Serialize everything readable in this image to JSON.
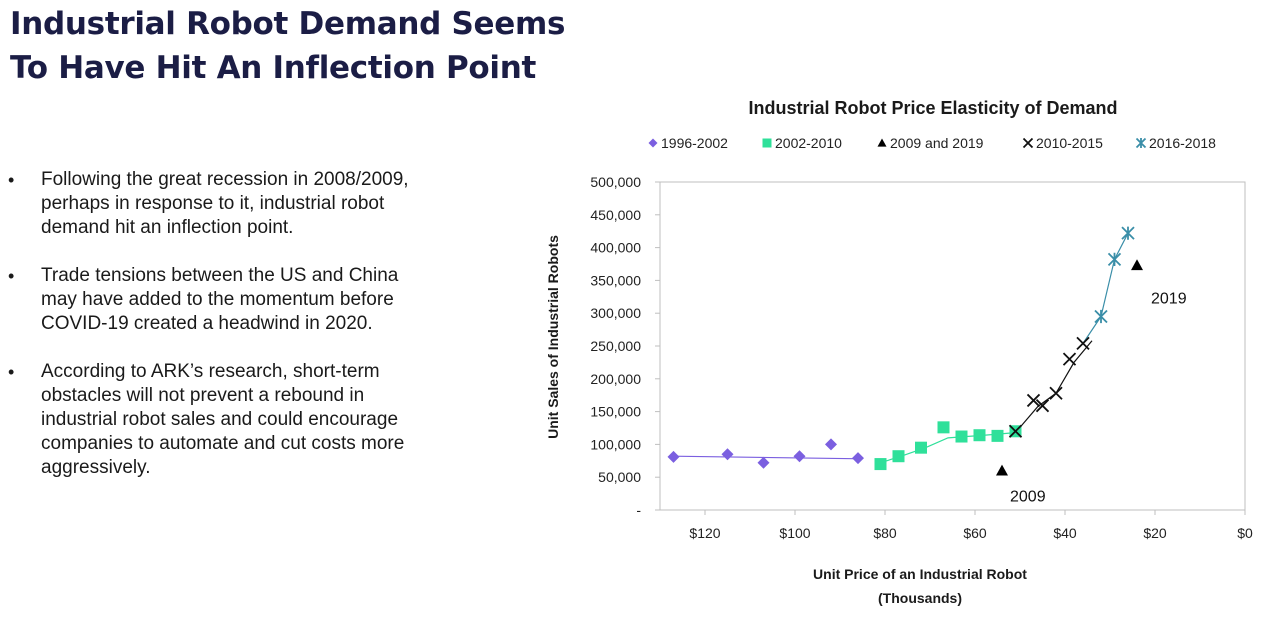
{
  "slide": {
    "title_line1": "Industrial Robot Demand Seems",
    "title_line2": "To Have Hit An Inflection Point",
    "bullets": [
      {
        "lines": [
          "Following the great recession in 2008/2009,",
          "perhaps in response to it, industrial robot",
          "demand hit an inflection point."
        ]
      },
      {
        "lines": [
          "Trade tensions between the US and China",
          "may have added to the momentum before",
          "COVID-19 created a headwind in 2020."
        ]
      },
      {
        "lines": [
          "According to ARK’s research, short-term",
          "obstacles will not prevent a rebound in",
          "industrial robot sales and could encourage",
          "companies to automate and cut costs more",
          "aggressively."
        ]
      }
    ],
    "bullet_marker": "•"
  },
  "chart_data": {
    "type": "scatter",
    "title": "Industrial Robot Price Elasticity of Demand",
    "xlabel_line1": "Unit Price of an Industrial Robot",
    "xlabel_line2": "(Thousands)",
    "ylabel": "Unit Sales of Industrial Robots",
    "x_reversed": true,
    "xlim": [
      0,
      130
    ],
    "ylim": [
      0,
      500000
    ],
    "x_ticks": [
      120,
      100,
      80,
      60,
      40,
      20,
      0
    ],
    "x_tick_labels": [
      "$120",
      "$100",
      "$80",
      "$60",
      "$40",
      "$20",
      "$0"
    ],
    "y_ticks": [
      0,
      50000,
      100000,
      150000,
      200000,
      250000,
      300000,
      350000,
      400000,
      450000,
      500000
    ],
    "y_tick_labels": [
      "-",
      "50,000",
      "100,000",
      "150,000",
      "200,000",
      "250,000",
      "300,000",
      "350,000",
      "400,000",
      "450,000",
      "500,000"
    ],
    "legend_position": "top",
    "series": [
      {
        "name": "1996-2002",
        "marker": "diamond",
        "color": "#7b5fe0",
        "trend": {
          "color": "#7b5fe0",
          "points": [
            [
              127,
              82000
            ],
            [
              85,
              78000
            ]
          ]
        },
        "points": [
          [
            127,
            81000
          ],
          [
            115,
            85000
          ],
          [
            107,
            72000
          ],
          [
            99,
            82000
          ],
          [
            92,
            100000
          ],
          [
            86,
            79000
          ]
        ]
      },
      {
        "name": "2002-2010",
        "marker": "square",
        "color": "#2fe09a",
        "trend": {
          "color": "#2fe09a",
          "points": [
            [
              81,
              72000
            ],
            [
              76,
              83000
            ],
            [
              71,
              95000
            ],
            [
              66,
              110000
            ],
            [
              58,
              114000
            ],
            [
              51,
              118000
            ]
          ]
        },
        "points": [
          [
            81,
            70000
          ],
          [
            77,
            82000
          ],
          [
            72,
            95000
          ],
          [
            67,
            126000
          ],
          [
            63,
            112000
          ],
          [
            59,
            114000
          ],
          [
            55,
            113000
          ],
          [
            51,
            120000
          ]
        ]
      },
      {
        "name": "2009 and 2019",
        "marker": "triangle",
        "color": "#000000",
        "points": [
          [
            54,
            60000
          ],
          [
            24,
            373000
          ]
        ]
      },
      {
        "name": "2010-2015",
        "marker": "x",
        "color": "#111111",
        "trend": {
          "color": "#111111",
          "points": [
            [
              51,
              118000
            ],
            [
              46,
              158000
            ],
            [
              42,
              178000
            ],
            [
              38,
              225000
            ],
            [
              34,
              258000
            ]
          ]
        },
        "points": [
          [
            51,
            120000
          ],
          [
            47,
            167000
          ],
          [
            45,
            159000
          ],
          [
            42,
            178000
          ],
          [
            39,
            230000
          ],
          [
            36,
            254000
          ]
        ]
      },
      {
        "name": "2016-2018",
        "marker": "star",
        "color": "#3a8ea8",
        "trend": {
          "color": "#3a8ea8",
          "points": [
            [
              36,
              254000
            ],
            [
              32,
              295000
            ],
            [
              29,
              382000
            ],
            [
              26,
              422000
            ]
          ]
        },
        "points": [
          [
            32,
            295000
          ],
          [
            29,
            382000
          ],
          [
            26,
            422000
          ]
        ]
      }
    ],
    "annotations": [
      {
        "text": "2009",
        "x": 54,
        "y": 60000
      },
      {
        "text": "2019",
        "x": 24,
        "y": 373000
      }
    ]
  }
}
